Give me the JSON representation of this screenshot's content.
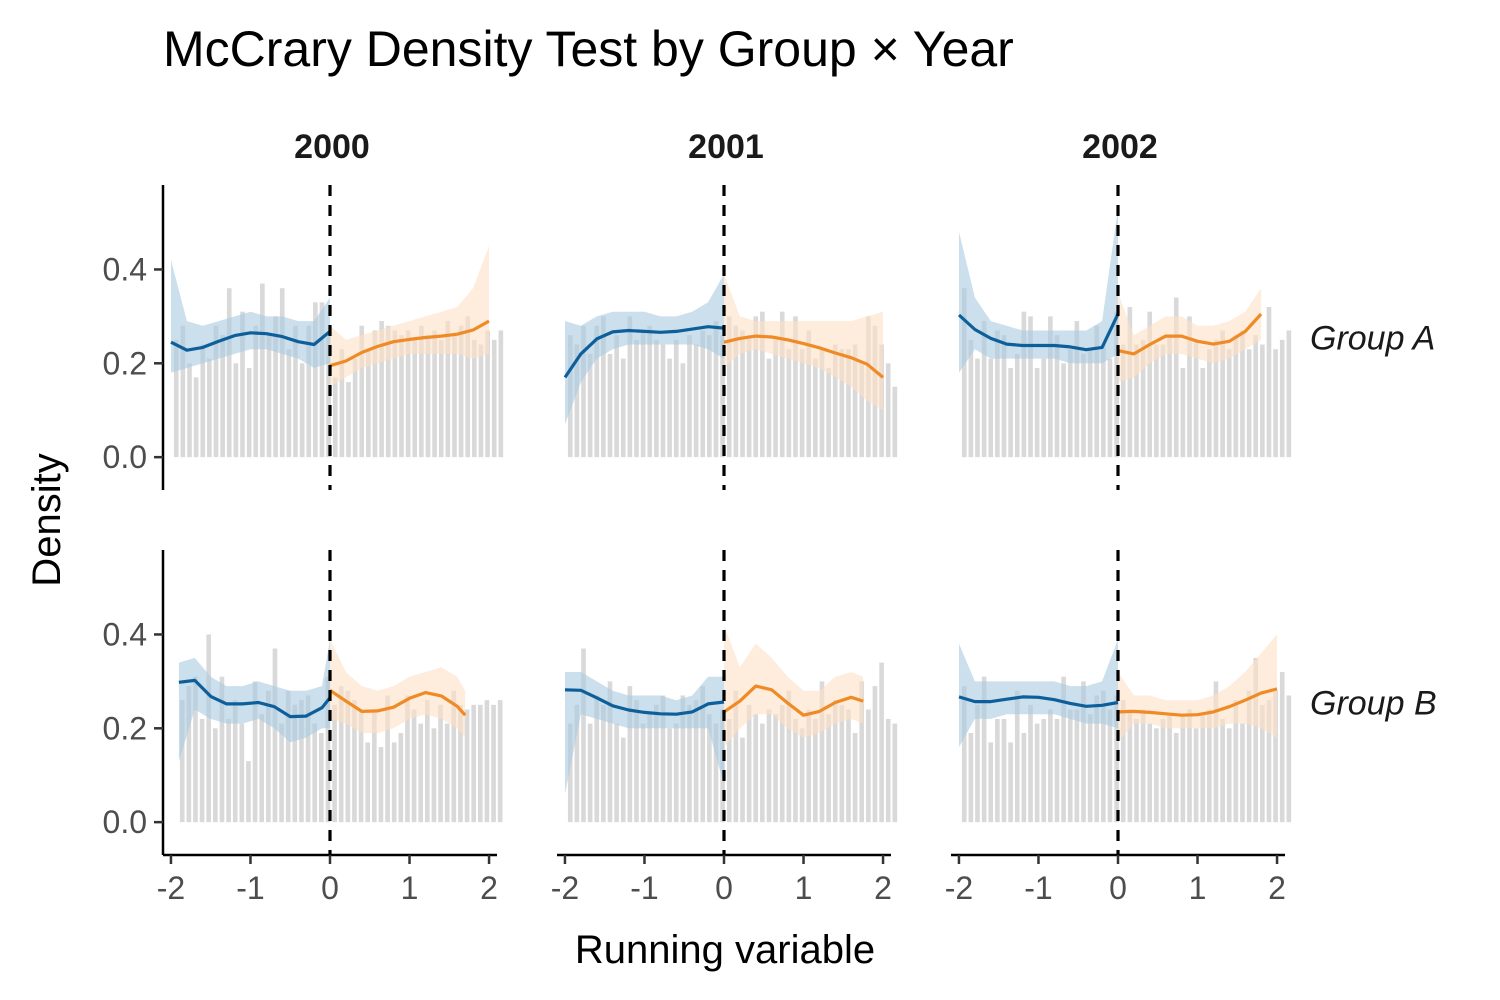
{
  "chart_data": {
    "type": "line",
    "title": "McCrary Density Test by Group × Year",
    "xlabel": "Running variable",
    "ylabel": "Density",
    "xlim": [
      -2.1,
      2.1
    ],
    "ylim": [
      -0.07,
      0.58
    ],
    "x_ticks": [
      -2,
      -1,
      0,
      1,
      2
    ],
    "x_tick_labels": [
      "-2",
      "-1",
      "0",
      "1",
      "2"
    ],
    "y_ticks": [
      0.0,
      0.2,
      0.4
    ],
    "y_tick_labels": [
      "0.0",
      "0.2",
      "0.4"
    ],
    "cutoff": 0,
    "grid": false,
    "colors": {
      "left": "#0d5f9b",
      "left_band": "#a9c9e0",
      "right": "#f08a24",
      "right_band": "#fde0c5",
      "bars": "#d9d9d9",
      "cutoff_line": "#000000"
    },
    "columns": [
      "2000",
      "2001",
      "2002"
    ],
    "rows": [
      "Group A",
      "Group B"
    ],
    "panels": [
      {
        "column": "2000",
        "row": "Group A",
        "bars": {
          "x0": -1.975,
          "width": 0.0833,
          "values": [
            0.25,
            0.28,
            0.2,
            0.17,
            0.24,
            0.21,
            0.28,
            0.26,
            0.36,
            0.2,
            0.31,
            0.19,
            0.28,
            0.37,
            0.26,
            0.3,
            0.36,
            0.23,
            0.28,
            0.2,
            0.28,
            0.33,
            0.33,
            0.26,
            0.17,
            0.23,
            0.16,
            0.21,
            0.28,
            0.23,
            0.27,
            0.29,
            0.28,
            0.27,
            0.26,
            0.27,
            0.25,
            0.28,
            0.26,
            0.27,
            0.25,
            0.29,
            0.26,
            0.28,
            0.3,
            0.25,
            0.24,
            0.27,
            0.25,
            0.27
          ]
        },
        "left_line": {
          "x": [
            -2.0,
            -1.8,
            -1.6,
            -1.4,
            -1.2,
            -1.0,
            -0.8,
            -0.6,
            -0.4,
            -0.2,
            0.0
          ],
          "y": [
            0.245,
            0.228,
            0.234,
            0.247,
            0.259,
            0.265,
            0.263,
            0.257,
            0.246,
            0.24,
            0.268
          ],
          "lower": [
            0.18,
            0.19,
            0.2,
            0.21,
            0.22,
            0.23,
            0.23,
            0.22,
            0.21,
            0.19,
            0.2
          ],
          "upper": [
            0.42,
            0.29,
            0.28,
            0.29,
            0.3,
            0.31,
            0.3,
            0.3,
            0.29,
            0.29,
            0.34
          ]
        },
        "right_line": {
          "x": [
            0.0,
            0.2,
            0.4,
            0.6,
            0.8,
            1.0,
            1.2,
            1.4,
            1.6,
            1.8,
            2.0
          ],
          "y": [
            0.195,
            0.205,
            0.223,
            0.236,
            0.246,
            0.251,
            0.255,
            0.258,
            0.262,
            0.271,
            0.29
          ],
          "lower": [
            0.15,
            0.17,
            0.19,
            0.2,
            0.21,
            0.22,
            0.22,
            0.22,
            0.22,
            0.21,
            0.22
          ],
          "upper": [
            0.28,
            0.25,
            0.26,
            0.27,
            0.28,
            0.29,
            0.3,
            0.31,
            0.32,
            0.36,
            0.45
          ]
        }
      },
      {
        "column": "2001",
        "row": "Group A",
        "bars": {
          "x0": -1.975,
          "width": 0.0833,
          "values": [
            0.26,
            0.24,
            0.28,
            0.22,
            0.28,
            0.3,
            0.22,
            0.26,
            0.21,
            0.3,
            0.25,
            0.27,
            0.28,
            0.25,
            0.24,
            0.21,
            0.25,
            0.2,
            0.26,
            0.24,
            0.27,
            0.26,
            0.29,
            0.26,
            0.3,
            0.28,
            0.27,
            0.26,
            0.3,
            0.31,
            0.21,
            0.25,
            0.31,
            0.23,
            0.3,
            0.23,
            0.27,
            0.21,
            0.23,
            0.19,
            0.24,
            0.23,
            0.23,
            0.24,
            0.2,
            0.3,
            0.28,
            0.24,
            0.2,
            0.15
          ]
        },
        "left_line": {
          "x": [
            -2.0,
            -1.8,
            -1.6,
            -1.4,
            -1.2,
            -1.0,
            -0.8,
            -0.6,
            -0.4,
            -0.2,
            0.0
          ],
          "y": [
            0.17,
            0.22,
            0.252,
            0.267,
            0.27,
            0.268,
            0.266,
            0.268,
            0.273,
            0.278,
            0.275
          ],
          "lower": [
            0.07,
            0.16,
            0.21,
            0.23,
            0.24,
            0.24,
            0.24,
            0.24,
            0.24,
            0.23,
            0.21
          ],
          "upper": [
            0.29,
            0.28,
            0.3,
            0.31,
            0.31,
            0.31,
            0.3,
            0.3,
            0.31,
            0.33,
            0.39
          ]
        },
        "right_line": {
          "x": [
            0.0,
            0.2,
            0.4,
            0.6,
            0.8,
            1.0,
            1.2,
            1.4,
            1.6,
            1.8,
            2.0
          ],
          "y": [
            0.245,
            0.253,
            0.258,
            0.256,
            0.25,
            0.242,
            0.233,
            0.222,
            0.212,
            0.198,
            0.17
          ],
          "lower": [
            0.19,
            0.22,
            0.23,
            0.22,
            0.21,
            0.2,
            0.19,
            0.17,
            0.15,
            0.12,
            0.1
          ],
          "upper": [
            0.39,
            0.3,
            0.29,
            0.29,
            0.29,
            0.29,
            0.29,
            0.29,
            0.29,
            0.3,
            0.31
          ]
        }
      },
      {
        "column": "2002",
        "row": "Group A",
        "bars": {
          "x0": -1.975,
          "width": 0.0833,
          "values": [
            0.36,
            0.25,
            0.21,
            0.29,
            0.21,
            0.27,
            0.26,
            0.19,
            0.22,
            0.31,
            0.3,
            0.19,
            0.21,
            0.3,
            0.26,
            0.2,
            0.23,
            0.29,
            0.22,
            0.23,
            0.28,
            0.24,
            0.21,
            0.31,
            0.24,
            0.32,
            0.24,
            0.25,
            0.31,
            0.24,
            0.24,
            0.26,
            0.34,
            0.19,
            0.3,
            0.25,
            0.19,
            0.23,
            0.25,
            0.27,
            0.23,
            0.26,
            0.27,
            0.23,
            0.26,
            0.24,
            0.32,
            0.23,
            0.25,
            0.27
          ]
        },
        "left_line": {
          "x": [
            -2.0,
            -1.8,
            -1.6,
            -1.4,
            -1.2,
            -1.0,
            -0.8,
            -0.6,
            -0.4,
            -0.2,
            0.0
          ],
          "y": [
            0.303,
            0.272,
            0.253,
            0.241,
            0.238,
            0.238,
            0.238,
            0.235,
            0.229,
            0.234,
            0.305
          ],
          "lower": [
            0.18,
            0.23,
            0.21,
            0.21,
            0.21,
            0.21,
            0.21,
            0.2,
            0.2,
            0.2,
            0.22
          ],
          "upper": [
            0.48,
            0.34,
            0.29,
            0.28,
            0.27,
            0.27,
            0.27,
            0.27,
            0.27,
            0.29,
            0.53
          ]
        },
        "right_line": {
          "x": [
            0.0,
            0.2,
            0.4,
            0.6,
            0.8,
            1.0,
            1.2,
            1.4,
            1.6,
            1.8
          ],
          "y": [
            0.227,
            0.22,
            0.24,
            0.258,
            0.258,
            0.247,
            0.241,
            0.247,
            0.268,
            0.305
          ],
          "lower": [
            0.16,
            0.17,
            0.2,
            0.22,
            0.22,
            0.21,
            0.2,
            0.21,
            0.23,
            0.25
          ],
          "upper": [
            0.35,
            0.26,
            0.28,
            0.3,
            0.3,
            0.28,
            0.28,
            0.29,
            0.31,
            0.36
          ]
        }
      },
      {
        "column": "2000",
        "row": "Group B",
        "bars": {
          "x0": -1.9,
          "width": 0.0833,
          "values": [
            0.26,
            0.29,
            0.31,
            0.22,
            0.4,
            0.2,
            0.31,
            0.22,
            0.26,
            0.21,
            0.13,
            0.3,
            0.23,
            0.28,
            0.37,
            0.21,
            0.28,
            0.25,
            0.26,
            0.27,
            0.21,
            0.19,
            0.31,
            0.25,
            0.29,
            0.28,
            0.26,
            0.24,
            0.17,
            0.24,
            0.16,
            0.27,
            0.17,
            0.19,
            0.27,
            0.24,
            0.21,
            0.26,
            0.2,
            0.25,
            0.21,
            0.28,
            0.25,
            0.24,
            0.25,
            0.25,
            0.26,
            0.25,
            0.26
          ]
        },
        "left_line": {
          "x": [
            -1.9,
            -1.7,
            -1.5,
            -1.3,
            -1.1,
            -0.9,
            -0.7,
            -0.5,
            -0.3,
            -0.1,
            0.0
          ],
          "y": [
            0.298,
            0.302,
            0.268,
            0.252,
            0.252,
            0.255,
            0.246,
            0.225,
            0.226,
            0.244,
            0.265
          ],
          "lower": [
            0.13,
            0.24,
            0.22,
            0.21,
            0.21,
            0.22,
            0.2,
            0.17,
            0.18,
            0.2,
            0.2
          ],
          "upper": [
            0.34,
            0.35,
            0.31,
            0.29,
            0.29,
            0.3,
            0.29,
            0.28,
            0.28,
            0.29,
            0.39
          ]
        },
        "right_line": {
          "x": [
            0.0,
            0.2,
            0.4,
            0.6,
            0.8,
            1.0,
            1.2,
            1.4,
            1.6,
            1.7
          ],
          "y": [
            0.281,
            0.258,
            0.236,
            0.237,
            0.245,
            0.264,
            0.276,
            0.269,
            0.247,
            0.228
          ],
          "lower": [
            0.22,
            0.21,
            0.19,
            0.19,
            0.2,
            0.22,
            0.23,
            0.22,
            0.2,
            0.18
          ],
          "upper": [
            0.39,
            0.32,
            0.29,
            0.28,
            0.29,
            0.31,
            0.32,
            0.33,
            0.31,
            0.28
          ]
        }
      },
      {
        "column": "2001",
        "row": "Group B",
        "bars": {
          "x0": -1.975,
          "width": 0.0833,
          "values": [
            0.21,
            0.25,
            0.37,
            0.21,
            0.27,
            0.25,
            0.3,
            0.21,
            0.18,
            0.29,
            0.26,
            0.21,
            0.23,
            0.25,
            0.27,
            0.2,
            0.21,
            0.27,
            0.25,
            0.26,
            0.29,
            0.23,
            0.21,
            0.24,
            0.22,
            0.28,
            0.18,
            0.25,
            0.23,
            0.21,
            0.24,
            0.23,
            0.25,
            0.28,
            0.22,
            0.2,
            0.24,
            0.22,
            0.3,
            0.23,
            0.26,
            0.25,
            0.24,
            0.19,
            0.3,
            0.24,
            0.29,
            0.34,
            0.22,
            0.21
          ]
        },
        "left_line": {
          "x": [
            -2.0,
            -1.8,
            -1.6,
            -1.4,
            -1.2,
            -1.0,
            -0.8,
            -0.6,
            -0.4,
            -0.2,
            0.0
          ],
          "y": [
            0.282,
            0.281,
            0.265,
            0.248,
            0.239,
            0.234,
            0.231,
            0.23,
            0.235,
            0.252,
            0.256
          ],
          "lower": [
            0.06,
            0.23,
            0.22,
            0.21,
            0.2,
            0.2,
            0.2,
            0.2,
            0.2,
            0.2,
            0.08
          ],
          "upper": [
            0.32,
            0.32,
            0.3,
            0.28,
            0.27,
            0.27,
            0.27,
            0.26,
            0.27,
            0.31,
            0.31
          ]
        },
        "right_line": {
          "x": [
            0.0,
            0.2,
            0.4,
            0.6,
            0.8,
            1.0,
            1.2,
            1.4,
            1.6,
            1.75
          ],
          "y": [
            0.235,
            0.258,
            0.29,
            0.282,
            0.254,
            0.228,
            0.236,
            0.255,
            0.266,
            0.258
          ],
          "lower": [
            0.16,
            0.2,
            0.23,
            0.23,
            0.2,
            0.18,
            0.19,
            0.21,
            0.22,
            0.21
          ],
          "upper": [
            0.42,
            0.33,
            0.38,
            0.35,
            0.31,
            0.28,
            0.28,
            0.31,
            0.32,
            0.31
          ]
        }
      },
      {
        "column": "2002",
        "row": "Group B",
        "bars": {
          "x0": -1.975,
          "width": 0.0833,
          "values": [
            0.29,
            0.19,
            0.25,
            0.31,
            0.17,
            0.22,
            0.22,
            0.17,
            0.28,
            0.19,
            0.25,
            0.21,
            0.22,
            0.24,
            0.22,
            0.31,
            0.24,
            0.24,
            0.3,
            0.23,
            0.27,
            0.28,
            0.24,
            0.27,
            0.26,
            0.24,
            0.22,
            0.24,
            0.21,
            0.2,
            0.22,
            0.23,
            0.19,
            0.23,
            0.24,
            0.2,
            0.23,
            0.24,
            0.3,
            0.22,
            0.2,
            0.26,
            0.21,
            0.28,
            0.35,
            0.25,
            0.26,
            0.28,
            0.32,
            0.27
          ]
        },
        "left_line": {
          "x": [
            -2.0,
            -1.8,
            -1.6,
            -1.4,
            -1.2,
            -1.0,
            -0.8,
            -0.6,
            -0.4,
            -0.2,
            0.0
          ],
          "y": [
            0.267,
            0.257,
            0.257,
            0.262,
            0.267,
            0.266,
            0.261,
            0.253,
            0.247,
            0.249,
            0.255
          ],
          "lower": [
            0.16,
            0.22,
            0.22,
            0.23,
            0.23,
            0.23,
            0.23,
            0.22,
            0.21,
            0.21,
            0.2
          ],
          "upper": [
            0.38,
            0.3,
            0.3,
            0.3,
            0.3,
            0.3,
            0.3,
            0.29,
            0.29,
            0.3,
            0.39
          ]
        },
        "right_line": {
          "x": [
            0.0,
            0.2,
            0.4,
            0.6,
            0.8,
            1.0,
            1.2,
            1.4,
            1.6,
            1.8,
            2.0
          ],
          "y": [
            0.235,
            0.236,
            0.234,
            0.231,
            0.228,
            0.229,
            0.235,
            0.246,
            0.26,
            0.275,
            0.284
          ],
          "lower": [
            0.17,
            0.21,
            0.21,
            0.2,
            0.2,
            0.2,
            0.2,
            0.21,
            0.21,
            0.2,
            0.18
          ],
          "upper": [
            0.32,
            0.27,
            0.27,
            0.26,
            0.26,
            0.26,
            0.27,
            0.29,
            0.32,
            0.36,
            0.4
          ]
        }
      }
    ]
  }
}
